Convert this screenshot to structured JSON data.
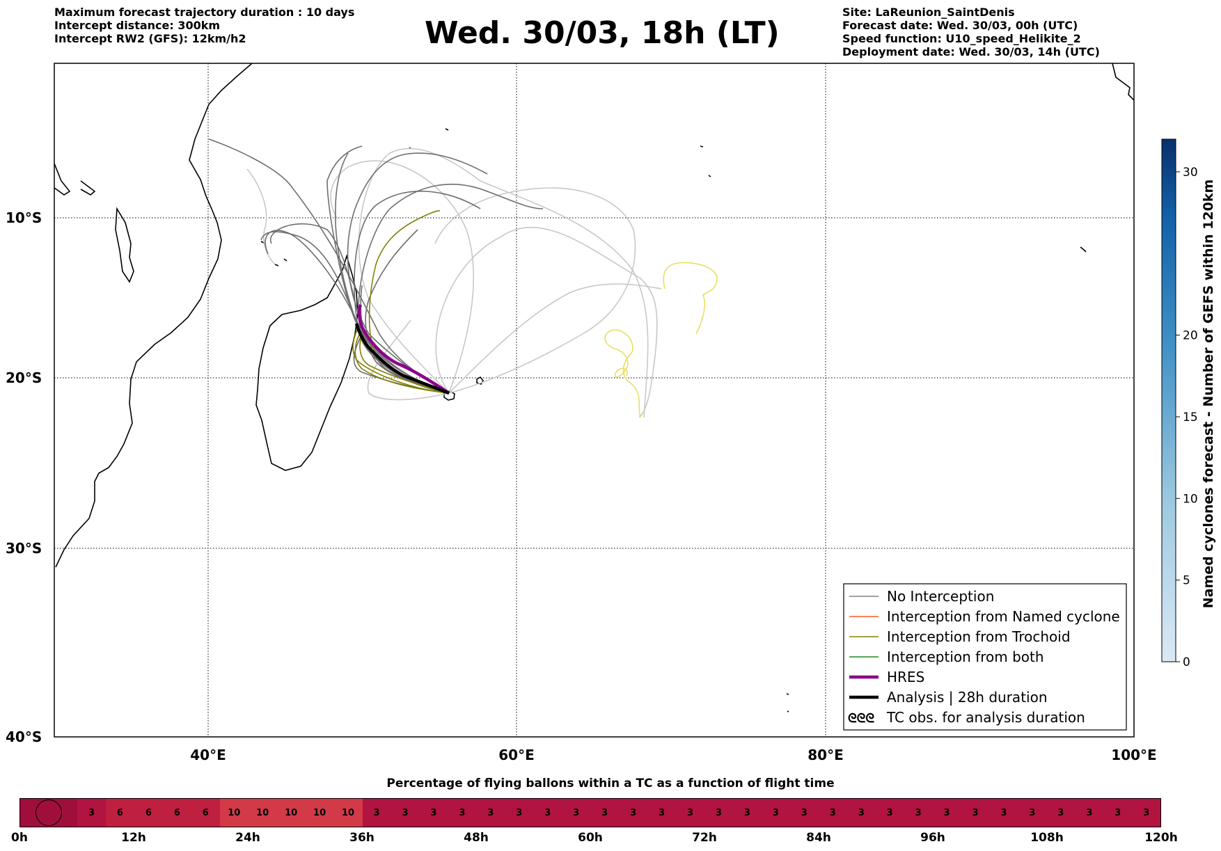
{
  "header_left": [
    "Maximum forecast trajectory duration : 10 days",
    "Intercept distance: 300km",
    "Intercept RW2 (GFS):  12km/h2"
  ],
  "title": "Wed. 30/03, 18h (LT)",
  "header_right": [
    "Site: LaReunion_SaintDenis",
    "Forecast date: Wed. 30/03, 00h (UTC)",
    "Speed function: U10_speed_Helikite_2",
    "Deployment date: Wed. 30/03, 14h (UTC)"
  ],
  "map": {
    "lon_labels": [
      "40°E",
      "60°E",
      "80°E",
      "100°E"
    ],
    "lat_labels": [
      "10°S",
      "20°S",
      "30°S",
      "40°S"
    ]
  },
  "legend": [
    {
      "label": "No Interception",
      "color": "#808080",
      "style": "thin"
    },
    {
      "label": "Interception from Named cyclone",
      "color": "#ff5a1f",
      "style": "thin"
    },
    {
      "label": "Interception from Trochoid",
      "color": "#808000",
      "style": "thin"
    },
    {
      "label": "Interception from both",
      "color": "#1a8c1a",
      "style": "thin"
    },
    {
      "label": "HRES",
      "color": "#8b008b",
      "style": "thick"
    },
    {
      "label": "Analysis | 28h duration",
      "color": "#000000",
      "style": "thick"
    },
    {
      "label": "TC obs. for analysis duration",
      "color": "#000000",
      "style": "symbol",
      "symbol": "ᘓᘓᘓ"
    }
  ],
  "colorbar": {
    "label": "Named cyclones forecast - Number of GEFS within 120km",
    "ticks": [
      "0",
      "5",
      "10",
      "15",
      "20",
      "30"
    ]
  },
  "strip": {
    "title": "Percentage of flying ballons within a TC as a function of flight time",
    "cells": [
      "",
      "",
      "3",
      "6",
      "6",
      "6",
      "6",
      "10",
      "10",
      "10",
      "10",
      "10",
      "3",
      "3",
      "3",
      "3",
      "3",
      "3",
      "3",
      "3",
      "3",
      "3",
      "3",
      "3",
      "3",
      "3",
      "3",
      "3",
      "3",
      "3",
      "3",
      "3",
      "3",
      "3",
      "3",
      "3",
      "3",
      "3",
      "3",
      "3"
    ],
    "hours": [
      "0h",
      "12h",
      "24h",
      "36h",
      "48h",
      "60h",
      "72h",
      "84h",
      "96h",
      "108h",
      "120h"
    ],
    "colors": {
      "3": "#b0143f",
      "6": "#c0203f",
      "10": "#d23a48",
      "": "#a00f3c"
    }
  },
  "colors": {
    "no_interception": "#6e6e6e",
    "light_members": "#c8c8c8",
    "trochoid": "#808000",
    "hres": "#8b008b",
    "analysis": "#000000",
    "yellow_tracks": "#e8e060"
  }
}
